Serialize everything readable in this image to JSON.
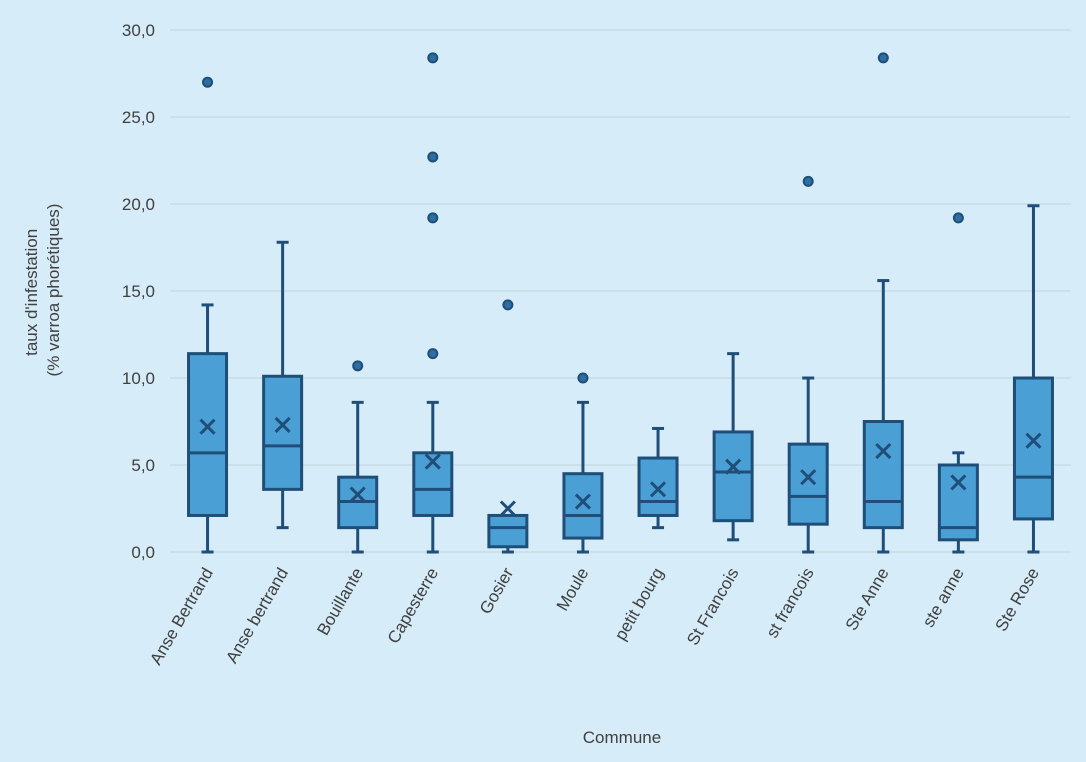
{
  "chart_data": {
    "type": "box",
    "xlabel": "Commune",
    "ylabel_lines": [
      "taux d'infestation",
      "(% varroa phorétiques)"
    ],
    "ylim": [
      0,
      30
    ],
    "yticks": [
      0,
      5,
      10,
      15,
      20,
      25,
      30
    ],
    "ytick_labels": [
      "0,0",
      "5,0",
      "10,0",
      "15,0",
      "20,0",
      "25,0",
      "30,0"
    ],
    "grid": true,
    "colors": {
      "box_fill": "#4aa0d5",
      "box_stroke": "#1f4e79",
      "outlier_fill": "#2e6fa3",
      "grid": "#c9dbe6",
      "background": "#d6ecf8"
    },
    "categories": [
      "Anse Bertrand",
      "Anse bertrand",
      "Bouillante",
      "Capesterre",
      "Gosier",
      "Moule",
      "petit bourg",
      "St Francois",
      "st francois",
      "Ste Anne",
      "ste anne",
      "Ste Rose"
    ],
    "boxes": [
      {
        "min": 0.0,
        "q1": 2.1,
        "median": 5.7,
        "q3": 11.4,
        "max": 14.2,
        "mean": 7.2,
        "outliers": [
          27.0
        ]
      },
      {
        "min": 1.4,
        "q1": 3.6,
        "median": 6.1,
        "q3": 10.1,
        "max": 17.8,
        "mean": 7.3,
        "outliers": []
      },
      {
        "min": 0.0,
        "q1": 1.4,
        "median": 2.9,
        "q3": 4.3,
        "max": 8.6,
        "mean": 3.3,
        "outliers": [
          10.7
        ]
      },
      {
        "min": 0.0,
        "q1": 2.1,
        "median": 3.6,
        "q3": 5.7,
        "max": 8.6,
        "mean": 5.2,
        "outliers": [
          11.4,
          19.2,
          22.7,
          28.4
        ]
      },
      {
        "min": 0.0,
        "q1": 0.3,
        "median": 1.4,
        "q3": 2.1,
        "max": 2.1,
        "mean": 2.5,
        "outliers": [
          14.2
        ]
      },
      {
        "min": 0.0,
        "q1": 0.8,
        "median": 2.1,
        "q3": 4.5,
        "max": 8.6,
        "mean": 2.9,
        "outliers": [
          10.0
        ]
      },
      {
        "min": 1.4,
        "q1": 2.1,
        "median": 2.9,
        "q3": 5.4,
        "max": 7.1,
        "mean": 3.6,
        "outliers": []
      },
      {
        "min": 0.7,
        "q1": 1.8,
        "median": 4.6,
        "q3": 6.9,
        "max": 11.4,
        "mean": 4.9,
        "outliers": []
      },
      {
        "min": 0.0,
        "q1": 1.6,
        "median": 3.2,
        "q3": 6.2,
        "max": 10.0,
        "mean": 4.3,
        "outliers": [
          21.3
        ]
      },
      {
        "min": 0.0,
        "q1": 1.4,
        "median": 2.9,
        "q3": 7.5,
        "max": 15.6,
        "mean": 5.8,
        "outliers": [
          28.4
        ]
      },
      {
        "min": 0.0,
        "q1": 0.7,
        "median": 1.4,
        "q3": 5.0,
        "max": 5.7,
        "mean": 4.0,
        "outliers": [
          19.2
        ]
      },
      {
        "min": 0.0,
        "q1": 1.9,
        "median": 4.3,
        "q3": 10.0,
        "max": 19.9,
        "mean": 6.4,
        "outliers": []
      }
    ]
  }
}
